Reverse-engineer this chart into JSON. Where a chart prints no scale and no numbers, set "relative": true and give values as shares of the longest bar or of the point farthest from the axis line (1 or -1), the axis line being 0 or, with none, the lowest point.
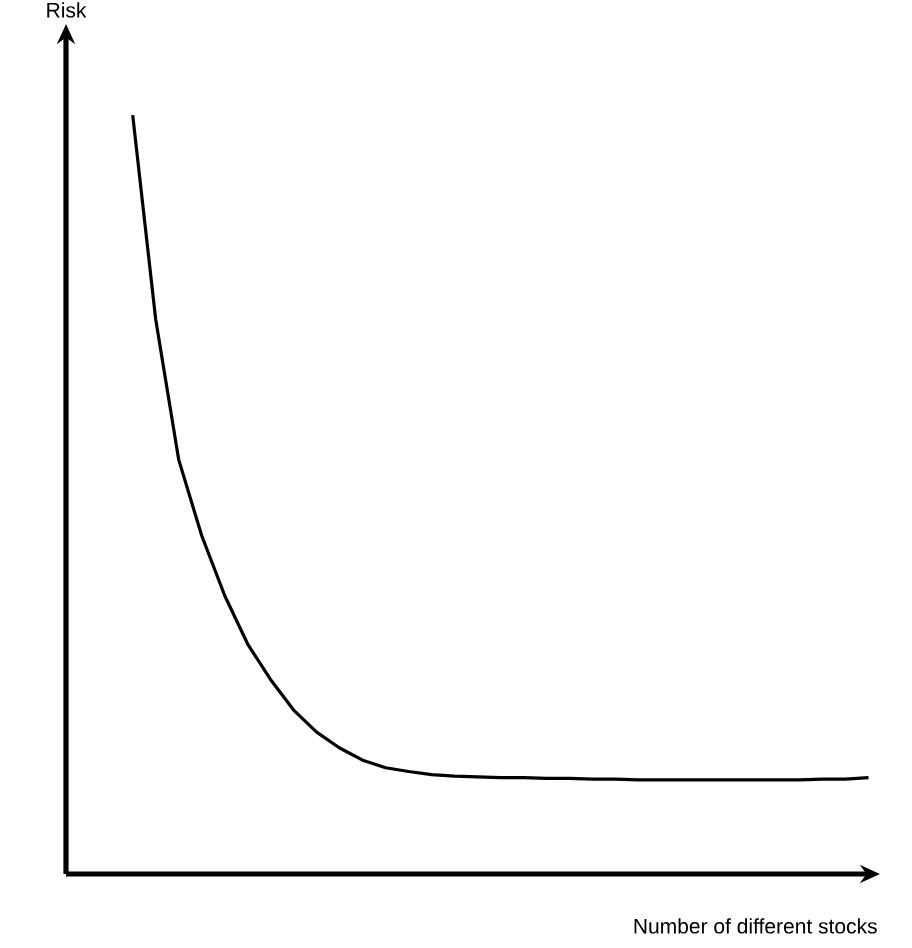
{
  "chart_data": {
    "type": "line",
    "relative": true,
    "xlabel": "Number of different stocks",
    "ylabel": "Risk",
    "color": "#000000",
    "marker": "none",
    "line_style": "solid",
    "categories": [
      null,
      null,
      null,
      null,
      null,
      null,
      null,
      null,
      null,
      null,
      null,
      null,
      null,
      null,
      null,
      null,
      null,
      null,
      null,
      null,
      null,
      null,
      null,
      null,
      null,
      null,
      null,
      null,
      null,
      null,
      null,
      null,
      null
    ],
    "values": [
      1.0,
      0.731,
      0.546,
      0.446,
      0.367,
      0.303,
      0.256,
      0.216,
      0.187,
      0.166,
      0.15,
      0.14,
      0.135,
      0.131,
      0.129,
      0.128,
      0.127,
      0.127,
      0.126,
      0.126,
      0.125,
      0.125,
      0.124,
      0.124,
      0.124,
      0.124,
      0.124,
      0.124,
      0.124,
      0.124,
      0.125,
      0.125,
      0.127
    ]
  }
}
